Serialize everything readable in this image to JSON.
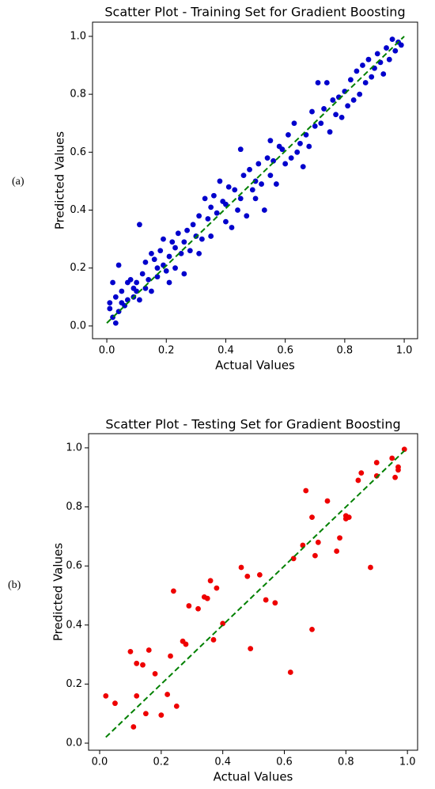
{
  "chart_data": [
    {
      "type": "scatter",
      "panel_label": "(a)",
      "title": "Scatter Plot - Training Set for Gradient Boosting",
      "xlabel": "Actual Values",
      "ylabel": "Predicted Values",
      "color": "#0000cc",
      "x": [
        0.01,
        0.01,
        0.02,
        0.02,
        0.03,
        0.03,
        0.04,
        0.04,
        0.05,
        0.05,
        0.06,
        0.07,
        0.07,
        0.08,
        0.09,
        0.09,
        0.1,
        0.1,
        0.11,
        0.11,
        0.12,
        0.13,
        0.13,
        0.14,
        0.15,
        0.15,
        0.16,
        0.17,
        0.17,
        0.18,
        0.19,
        0.19,
        0.2,
        0.21,
        0.21,
        0.22,
        0.23,
        0.23,
        0.24,
        0.25,
        0.26,
        0.26,
        0.27,
        0.28,
        0.29,
        0.3,
        0.31,
        0.31,
        0.32,
        0.33,
        0.34,
        0.35,
        0.35,
        0.36,
        0.37,
        0.38,
        0.39,
        0.4,
        0.4,
        0.41,
        0.42,
        0.43,
        0.44,
        0.45,
        0.45,
        0.46,
        0.47,
        0.48,
        0.49,
        0.5,
        0.5,
        0.51,
        0.52,
        0.53,
        0.54,
        0.55,
        0.55,
        0.56,
        0.57,
        0.58,
        0.59,
        0.6,
        0.61,
        0.62,
        0.63,
        0.64,
        0.65,
        0.66,
        0.67,
        0.68,
        0.69,
        0.7,
        0.71,
        0.72,
        0.73,
        0.74,
        0.75,
        0.76,
        0.77,
        0.78,
        0.79,
        0.8,
        0.81,
        0.82,
        0.83,
        0.84,
        0.85,
        0.86,
        0.87,
        0.88,
        0.89,
        0.9,
        0.91,
        0.92,
        0.93,
        0.94,
        0.95,
        0.96,
        0.97,
        0.98,
        0.99
      ],
      "values": [
        0.08,
        0.06,
        0.15,
        0.03,
        0.01,
        0.1,
        0.21,
        0.05,
        0.08,
        0.12,
        0.07,
        0.15,
        0.09,
        0.16,
        0.1,
        0.13,
        0.15,
        0.12,
        0.35,
        0.09,
        0.18,
        0.13,
        0.22,
        0.16,
        0.25,
        0.12,
        0.23,
        0.2,
        0.17,
        0.26,
        0.21,
        0.3,
        0.19,
        0.24,
        0.15,
        0.29,
        0.27,
        0.2,
        0.32,
        0.25,
        0.18,
        0.29,
        0.33,
        0.26,
        0.35,
        0.31,
        0.25,
        0.38,
        0.3,
        0.44,
        0.37,
        0.41,
        0.31,
        0.45,
        0.39,
        0.5,
        0.43,
        0.36,
        0.42,
        0.48,
        0.34,
        0.47,
        0.4,
        0.61,
        0.44,
        0.52,
        0.38,
        0.54,
        0.47,
        0.5,
        0.44,
        0.56,
        0.49,
        0.4,
        0.58,
        0.52,
        0.64,
        0.57,
        0.49,
        0.62,
        0.61,
        0.56,
        0.66,
        0.58,
        0.7,
        0.6,
        0.63,
        0.55,
        0.66,
        0.62,
        0.74,
        0.69,
        0.84,
        0.7,
        0.75,
        0.84,
        0.67,
        0.78,
        0.73,
        0.79,
        0.72,
        0.81,
        0.76,
        0.85,
        0.78,
        0.88,
        0.8,
        0.9,
        0.84,
        0.92,
        0.86,
        0.89,
        0.94,
        0.91,
        0.87,
        0.96,
        0.92,
        0.99,
        0.95,
        0.98,
        0.97
      ],
      "reference_line": {
        "color": "#008000",
        "x": [
          0,
          1
        ],
        "values": [
          0.01,
          1
        ]
      },
      "xlim": [
        -0.048,
        1.045
      ],
      "ylim": [
        -0.044,
        1.049
      ],
      "xticks": [
        {
          "value": 0,
          "label": "0.0"
        },
        0.2,
        0.4,
        0.6,
        0.8,
        {
          "value": 1,
          "label": "1.0"
        }
      ],
      "yticks": [
        {
          "value": 0,
          "label": "0.0"
        },
        0.2,
        0.4,
        0.6,
        0.8,
        {
          "value": 1,
          "label": "1.0"
        }
      ]
    },
    {
      "type": "scatter",
      "panel_label": "(b)",
      "title": "Scatter Plot - Testing Set for Gradient Boosting",
      "xlabel": "Actual Values",
      "ylabel": "Predicted Values",
      "color": "#ee0000",
      "x": [
        0.02,
        0.05,
        0.1,
        0.11,
        0.12,
        0.12,
        0.14,
        0.15,
        0.16,
        0.18,
        0.2,
        0.22,
        0.23,
        0.24,
        0.25,
        0.27,
        0.28,
        0.29,
        0.32,
        0.34,
        0.35,
        0.36,
        0.37,
        0.38,
        0.4,
        0.46,
        0.48,
        0.49,
        0.52,
        0.54,
        0.57,
        0.62,
        0.63,
        0.66,
        0.67,
        0.69,
        0.69,
        0.7,
        0.71,
        0.74,
        0.77,
        0.78,
        0.8,
        0.8,
        0.81,
        0.84,
        0.85,
        0.88,
        0.9,
        0.9,
        0.95,
        0.96,
        0.97,
        0.97,
        0.99
      ],
      "values": [
        0.16,
        0.135,
        0.31,
        0.055,
        0.16,
        0.27,
        0.265,
        0.1,
        0.315,
        0.235,
        0.095,
        0.165,
        0.295,
        0.515,
        0.125,
        0.345,
        0.335,
        0.465,
        0.455,
        0.495,
        0.49,
        0.55,
        0.35,
        0.525,
        0.405,
        0.595,
        0.565,
        0.32,
        0.57,
        0.485,
        0.475,
        0.24,
        0.625,
        0.67,
        0.855,
        0.765,
        0.385,
        0.635,
        0.68,
        0.82,
        0.65,
        0.695,
        0.77,
        0.76,
        0.765,
        0.89,
        0.915,
        0.595,
        0.905,
        0.95,
        0.965,
        0.9,
        0.925,
        0.935,
        0.995
      ],
      "reference_line": {
        "color": "#008000",
        "x": [
          0.02,
          0.99
        ],
        "values": [
          0.02,
          0.99
        ]
      },
      "xlim": [
        -0.036,
        1.033
      ],
      "ylim": [
        -0.024,
        1.048
      ],
      "xticks": [
        {
          "value": 0,
          "label": "0.0"
        },
        0.2,
        0.4,
        0.6,
        0.8,
        {
          "value": 1,
          "label": "1.0"
        }
      ],
      "yticks": [
        {
          "value": 0,
          "label": "0.0"
        },
        0.2,
        0.4,
        0.6,
        0.8,
        {
          "value": 1,
          "label": "1.0"
        }
      ]
    }
  ]
}
